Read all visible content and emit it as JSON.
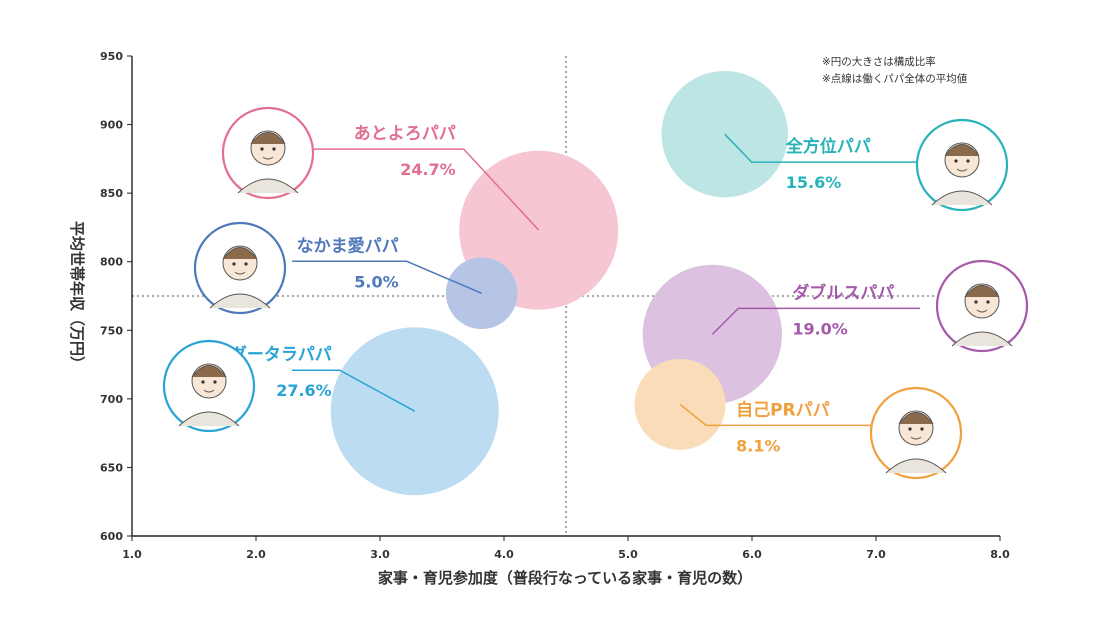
{
  "chart_data": {
    "type": "scatter",
    "xlabel": "家事・育児参加度（普段行なっている家事・育児の数）",
    "ylabel": "平均世帯年収（万円）",
    "xlim": [
      1.0,
      8.0
    ],
    "ylim": [
      600,
      950
    ],
    "x_ticks": [
      "1.0",
      "2.0",
      "3.0",
      "4.0",
      "5.0",
      "6.0",
      "7.0",
      "8.0"
    ],
    "y_ticks": [
      "600",
      "650",
      "700",
      "750",
      "800",
      "850",
      "900",
      "950"
    ],
    "reference_lines": {
      "x": 4.5,
      "y": 775
    },
    "notes": [
      "※円の大きさは構成比率",
      "※点線は働くパパ全体の平均値"
    ],
    "series": [
      {
        "name": "あとよろパパ",
        "percent_label": "24.7%",
        "x": 4.28,
        "y": 823,
        "share": 24.7,
        "color": "#f6c6d2",
        "label_color": "#e26f8f",
        "label_side": "left"
      },
      {
        "name": "なかま愛パパ",
        "percent_label": "5.0%",
        "x": 3.82,
        "y": 777,
        "share": 5.0,
        "color": "#b6c5e6",
        "label_color": "#4f79b8",
        "label_side": "left"
      },
      {
        "name": "グータラパパ",
        "percent_label": "27.6%",
        "x": 3.28,
        "y": 691,
        "share": 27.6,
        "color": "#bcdcf2",
        "label_color": "#29a3d6",
        "label_side": "left"
      },
      {
        "name": "全方位パパ",
        "percent_label": "15.6%",
        "x": 5.78,
        "y": 893,
        "share": 15.6,
        "color": "#bde5e4",
        "label_color": "#28b2b9",
        "label_side": "right"
      },
      {
        "name": "ダブルスパパ",
        "percent_label": "19.0%",
        "x": 5.68,
        "y": 747,
        "share": 19.0,
        "color": "#dcc1e1",
        "label_color": "#a45aa8",
        "label_side": "right"
      },
      {
        "name": "自己PRパパ",
        "percent_label": "8.1%",
        "x": 5.42,
        "y": 696,
        "share": 8.1,
        "color": "#fbdcb9",
        "label_color": "#f0a13e",
        "label_side": "right"
      }
    ]
  }
}
